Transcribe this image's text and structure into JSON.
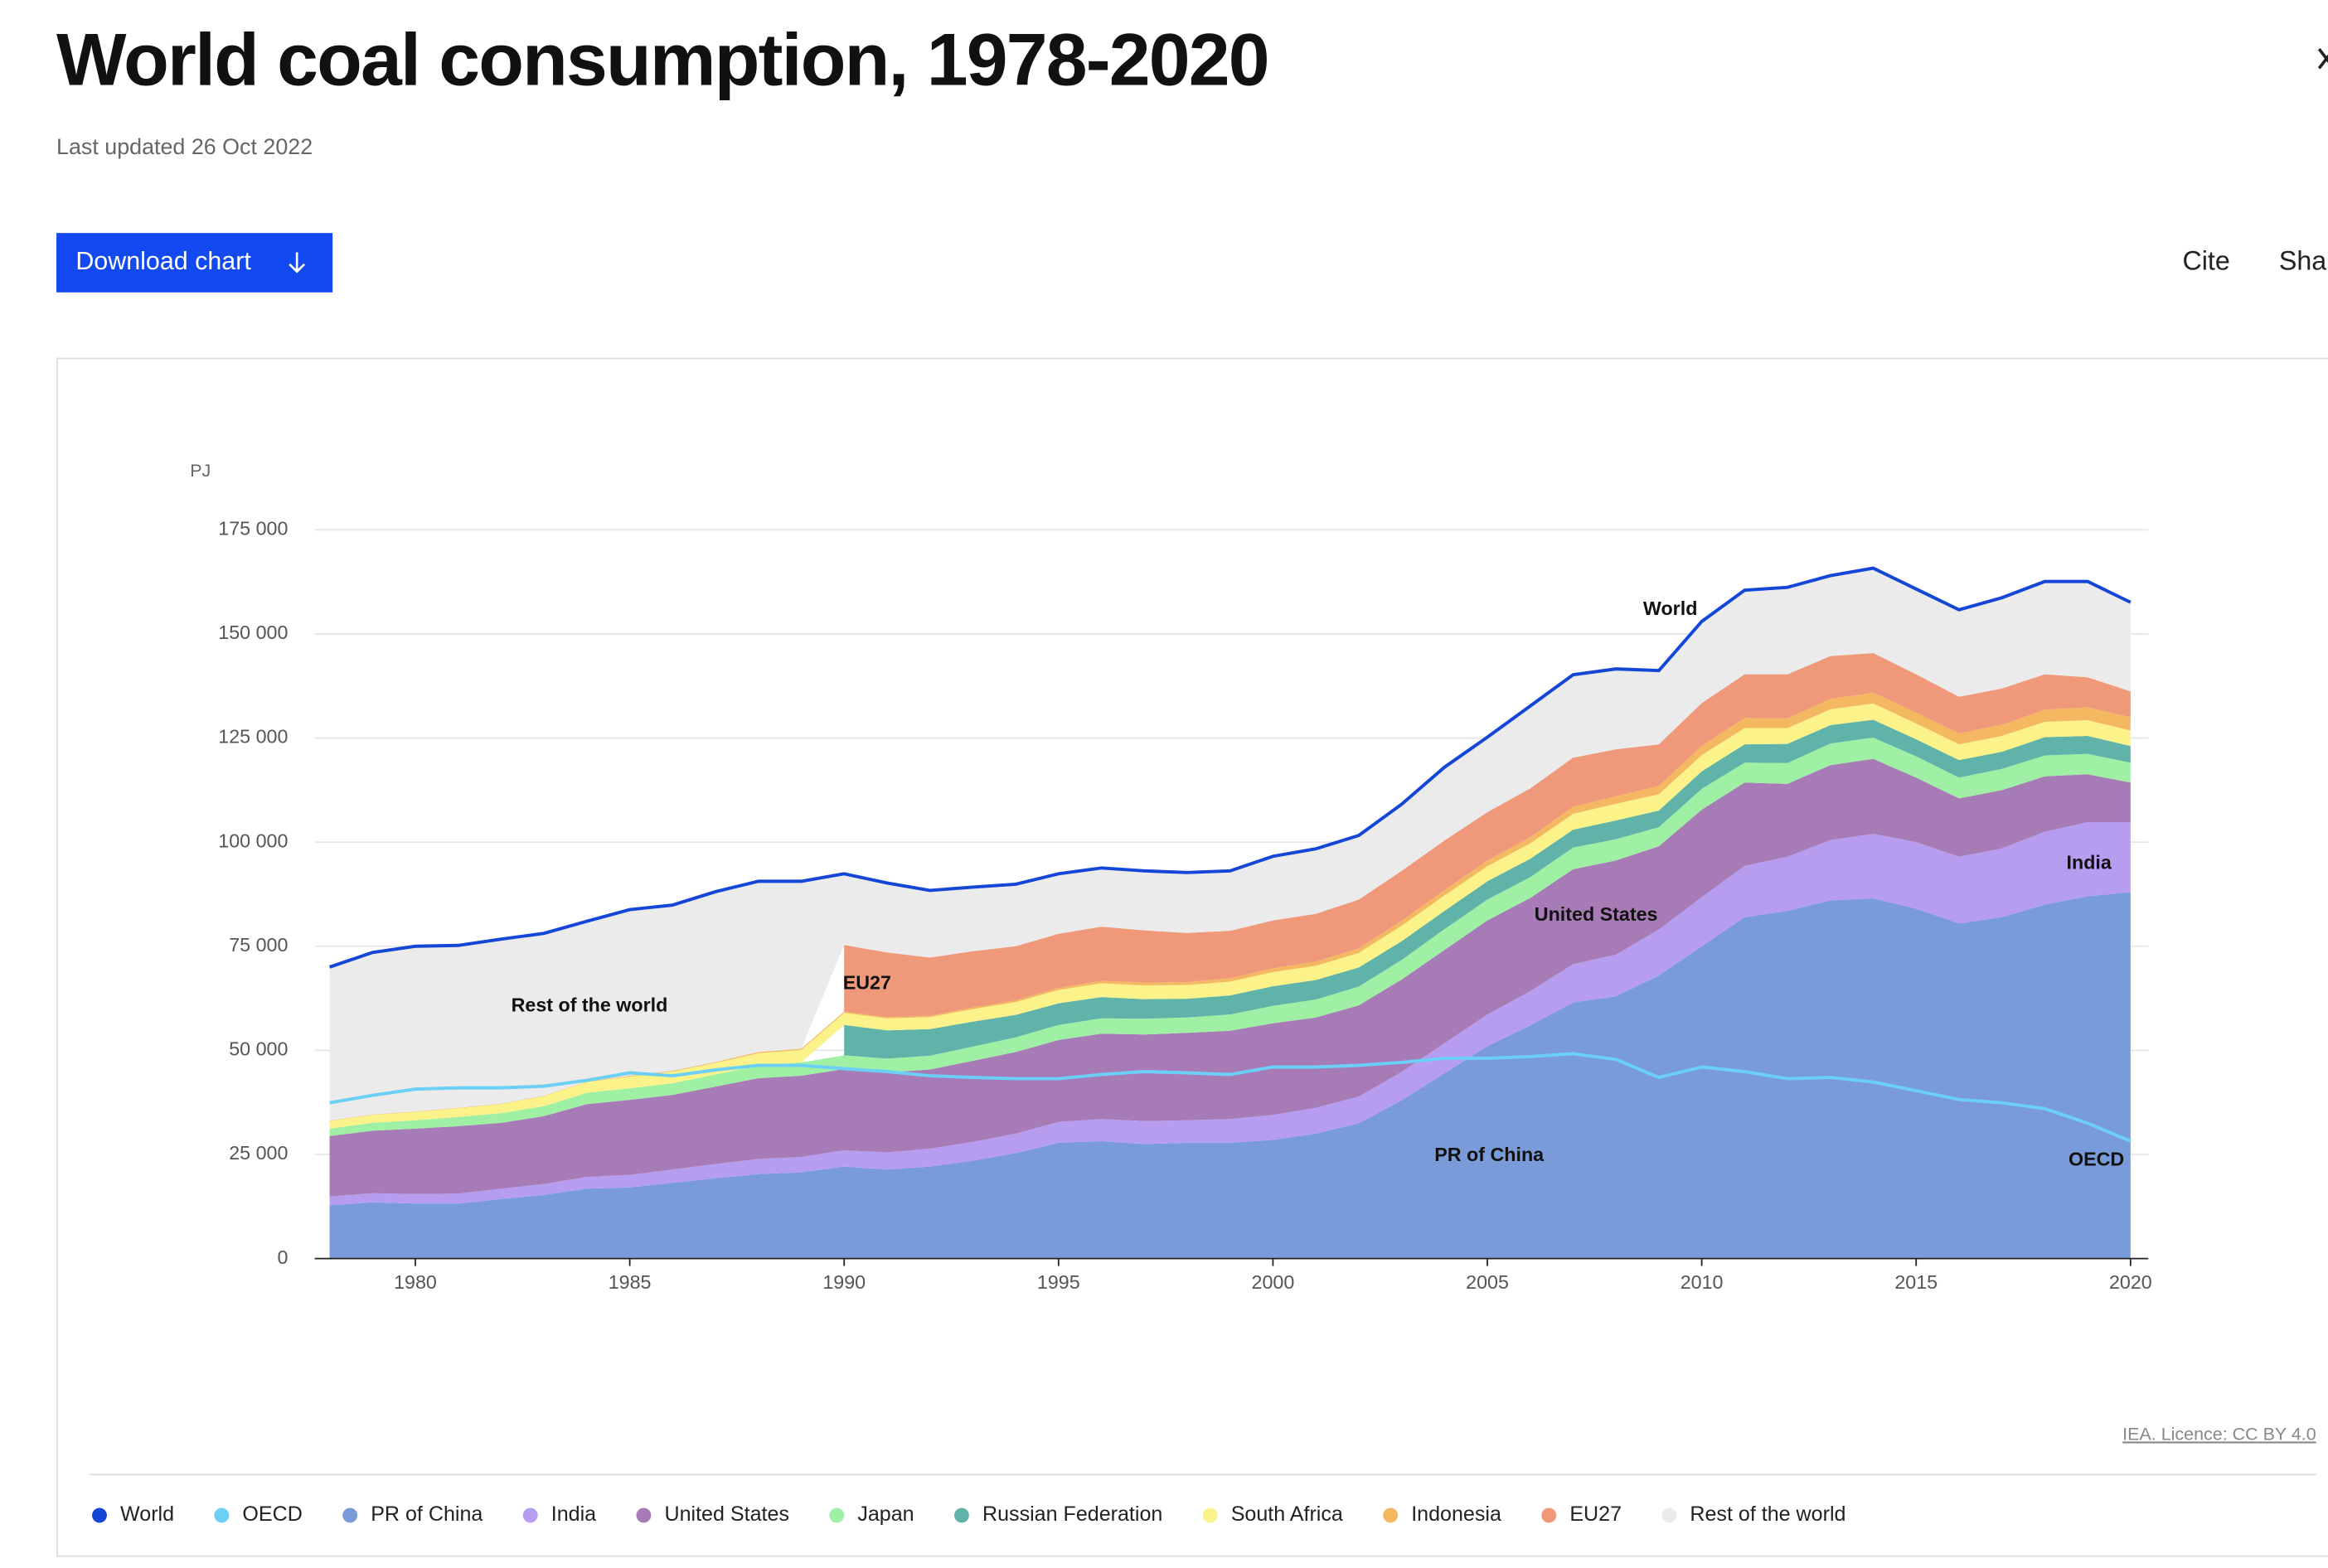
{
  "header": {
    "title": "World coal consumption, 1978-2020",
    "updated": "Last updated 26 Oct 2022",
    "download": "Download chart",
    "cite": "Cite",
    "share": "Share"
  },
  "chart_data": {
    "type": "area",
    "stacked": true,
    "unit_label": "PJ",
    "grid": true,
    "x": [
      1978,
      1979,
      1980,
      1981,
      1982,
      1983,
      1984,
      1985,
      1986,
      1987,
      1988,
      1989,
      1990,
      1991,
      1992,
      1993,
      1994,
      1995,
      1996,
      1997,
      1998,
      1999,
      2000,
      2001,
      2002,
      2003,
      2004,
      2005,
      2006,
      2007,
      2008,
      2009,
      2010,
      2011,
      2012,
      2013,
      2014,
      2015,
      2016,
      2017,
      2018,
      2019,
      2020
    ],
    "xlim": [
      1978,
      2020
    ],
    "xticks": [
      1980,
      1985,
      1990,
      1995,
      2000,
      2005,
      2010,
      2015,
      2020
    ],
    "ylim": [
      0,
      175000
    ],
    "yticks": [
      0,
      {
        "value": 25000,
        "label": "25 000"
      },
      {
        "value": 50000,
        "label": "50 000"
      },
      {
        "value": 75000,
        "label": "75 000"
      },
      {
        "value": 100000,
        "label": "100 000"
      },
      {
        "value": 125000,
        "label": "125 000"
      },
      {
        "value": 150000,
        "label": "150 000"
      },
      {
        "value": 175000,
        "label": "175 000"
      }
    ],
    "series": [
      {
        "name": "World",
        "type": "line",
        "color": "#1446d8",
        "values": [
          70000,
          73500,
          75000,
          75200,
          76700,
          78100,
          81000,
          83800,
          84900,
          88100,
          90600,
          90600,
          92400,
          90200,
          88400,
          89200,
          89900,
          92400,
          93800,
          93100,
          92700,
          93100,
          96600,
          98400,
          101600,
          109100,
          118000,
          125200,
          132700,
          140200,
          141600,
          141200,
          153000,
          160500,
          161200,
          164000,
          165800,
          160800,
          155800,
          158700,
          162600,
          162600,
          157600
        ]
      },
      {
        "name": "OECD",
        "type": "line",
        "color": "#6ccff6",
        "values": [
          37400,
          39200,
          40700,
          41000,
          41000,
          41400,
          42800,
          44600,
          43900,
          45300,
          46400,
          46400,
          45600,
          44900,
          43900,
          43500,
          43200,
          43200,
          44200,
          44900,
          44600,
          44200,
          46000,
          46000,
          46400,
          47100,
          48100,
          48100,
          48500,
          49200,
          47800,
          43500,
          46000,
          44900,
          43200,
          43500,
          42400,
          40300,
          38200,
          37400,
          36000,
          32500,
          28200
        ]
      },
      {
        "name": "PR of China",
        "type": "area",
        "color": "#7a9bd9",
        "values": [
          12800,
          13500,
          13200,
          13200,
          14300,
          15300,
          16800,
          17100,
          18200,
          19300,
          20300,
          20700,
          22100,
          21400,
          22100,
          23500,
          25300,
          27800,
          28200,
          27500,
          27800,
          27800,
          28500,
          30000,
          32500,
          38000,
          44500,
          51000,
          56000,
          61500,
          63000,
          68000,
          75000,
          82000,
          83500,
          86000,
          86500,
          84000,
          80500,
          82000,
          85000,
          87000,
          88000
        ]
      },
      {
        "name": "India",
        "type": "area",
        "color": "#b79df0",
        "values": [
          2100,
          2200,
          2300,
          2400,
          2500,
          2600,
          2800,
          3000,
          3200,
          3400,
          3600,
          3700,
          3900,
          4100,
          4300,
          4500,
          4700,
          5000,
          5300,
          5500,
          5400,
          5700,
          6000,
          6200,
          6400,
          6800,
          7200,
          7600,
          8200,
          9200,
          10000,
          11000,
          11800,
          12300,
          13000,
          14500,
          15500,
          16000,
          16000,
          16500,
          17500,
          17800,
          16800
        ]
      },
      {
        "name": "United States",
        "type": "area",
        "color": "#a77bb6",
        "values": [
          14500,
          15000,
          15700,
          16200,
          15800,
          16300,
          17500,
          18000,
          17900,
          18600,
          19400,
          19500,
          19500,
          19200,
          19000,
          19500,
          19600,
          19700,
          20500,
          20800,
          21000,
          21200,
          22000,
          21700,
          21900,
          22200,
          22400,
          22600,
          22400,
          22800,
          22600,
          20000,
          21000,
          20000,
          17500,
          18000,
          18000,
          15500,
          14000,
          14000,
          13300,
          11500,
          9500
        ]
      },
      {
        "name": "Japan",
        "type": "area",
        "color": "#9ff0a5",
        "values": [
          1800,
          1900,
          2000,
          2200,
          2300,
          2400,
          2700,
          2800,
          2800,
          2900,
          3100,
          3200,
          3300,
          3300,
          3300,
          3400,
          3500,
          3600,
          3700,
          3800,
          3700,
          3900,
          4200,
          4300,
          4500,
          4700,
          5000,
          5000,
          5000,
          5200,
          5100,
          4600,
          5000,
          4800,
          5000,
          5200,
          5100,
          5100,
          5000,
          5100,
          5000,
          4900,
          4800
        ]
      },
      {
        "name": "Russian Federation",
        "type": "area",
        "color": "#5fb3a8",
        "values": [
          null,
          null,
          null,
          null,
          null,
          null,
          null,
          null,
          null,
          null,
          null,
          null,
          7300,
          6800,
          6400,
          6000,
          5400,
          5200,
          5100,
          4700,
          4500,
          4600,
          4700,
          4700,
          4600,
          4500,
          4400,
          4400,
          4400,
          4300,
          4500,
          4000,
          4200,
          4400,
          4600,
          4400,
          4300,
          4100,
          4200,
          4100,
          4400,
          4300,
          4000
        ]
      },
      {
        "name": "South Africa",
        "type": "area",
        "color": "#fbf28a",
        "values": [
          1800,
          1900,
          2000,
          2100,
          2200,
          2400,
          2600,
          2800,
          2800,
          2800,
          2900,
          3000,
          2900,
          2900,
          2900,
          3000,
          3100,
          3200,
          3300,
          3300,
          3300,
          3300,
          3400,
          3400,
          3500,
          3700,
          3700,
          3600,
          3700,
          3800,
          4000,
          3900,
          3900,
          3900,
          3800,
          3800,
          3900,
          3800,
          3800,
          3800,
          3700,
          3800,
          3700
        ]
      },
      {
        "name": "Indonesia",
        "type": "area",
        "color": "#f4b860",
        "values": [
          100,
          100,
          100,
          100,
          100,
          100,
          100,
          200,
          200,
          200,
          300,
          300,
          300,
          300,
          300,
          400,
          400,
          500,
          600,
          700,
          700,
          800,
          900,
          1000,
          1100,
          1200,
          1300,
          1400,
          1500,
          1700,
          1800,
          2000,
          2200,
          2400,
          2300,
          2500,
          2600,
          2600,
          2600,
          2700,
          2900,
          3100,
          3200
        ]
      },
      {
        "name": "EU27",
        "type": "area",
        "color": "#f0987a",
        "values": [
          null,
          null,
          null,
          null,
          null,
          null,
          null,
          null,
          null,
          null,
          null,
          null,
          16000,
          15500,
          14000,
          13500,
          13000,
          13000,
          13000,
          12500,
          11800,
          11400,
          11500,
          11500,
          11700,
          12000,
          11900,
          11600,
          11700,
          11800,
          11300,
          10000,
          10300,
          10500,
          10600,
          10300,
          9500,
          9200,
          8800,
          8700,
          8500,
          7200,
          6200
        ]
      },
      {
        "name": "Rest of the world",
        "type": "area",
        "color": "#ebebeb",
        "values": [
          36900,
          38900,
          39700,
          39000,
          39500,
          39000,
          38500,
          39900,
          39800,
          40900,
          41000,
          40200,
          17100,
          16700,
          16100,
          15400,
          14900,
          14400,
          14100,
          14300,
          14500,
          14400,
          15400,
          15600,
          15400,
          16000,
          17600,
          18000,
          19800,
          19900,
          19300,
          17700,
          19600,
          20200,
          20900,
          19300,
          20400,
          20500,
          20900,
          21800,
          22300,
          23000,
          21400
        ]
      }
    ],
    "annotations": [
      "World",
      "Rest of the world",
      "EU27",
      "United States",
      "India",
      "PR of China",
      "OECD"
    ],
    "source": "IEA. Licence: CC BY 4.0"
  }
}
